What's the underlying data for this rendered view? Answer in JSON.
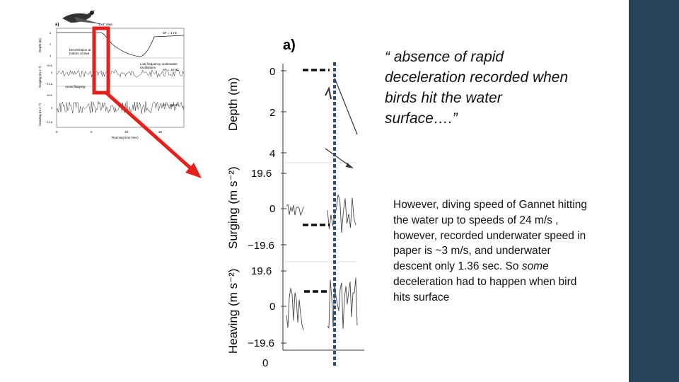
{
  "slide": {
    "quote": "“ absence of rapid deceleration recorded when birds hit the water surface….”",
    "body_before_em": "However, diving speed of Gannet hitting the water up to speeds of 24 m/s , however, recorded underwater speed in paper is ~3 m/s, and underwater descent only 1.36 sec.  So ",
    "body_em": "some",
    "body_after_em": " deceleration had to happen when bird hits surface",
    "sidebar_color": "#264559",
    "callout_color": "#e8201c"
  },
  "small_figure": {
    "panel": "a)",
    "top_note": "\"Exit\" data",
    "rate_depth": "SF = 1 Hz",
    "rate_surging": "SF = 16 Hz",
    "rate_heaving": "SF = 16 Hz",
    "ann_decel": "Deceleration at bottom of dive",
    "ann_lowfreq": "Low frequency underwater oscillations",
    "ann_flapping": "Aerial flapping",
    "ylabel_depth": "Depth (m)",
    "ylabel_surging": "Surging (m s⁻²)",
    "ylabel_heaving": "Heaving (m s⁻²)",
    "depth_ticks": [
      "0",
      "2",
      "4"
    ],
    "accel_ticks": [
      "19.6",
      "0",
      "−19.6"
    ],
    "x_ticks": [
      "0",
      "5",
      "10",
      "15"
    ],
    "xlabel": "Running time (sec)"
  },
  "zoom_figure": {
    "panel": "a)",
    "ylabel_depth": "Depth (m)",
    "ylabel_surging": "Surging (m s⁻²)",
    "ylabel_heaving": "Heaving (m s⁻²)",
    "depth_ticks": [
      "0",
      "2",
      "4"
    ],
    "surging_ticks": [
      "19.6",
      "0",
      "−19.6"
    ],
    "heaving_ticks": [
      "19.6",
      "0",
      "−19.6"
    ],
    "x_tick": "0"
  }
}
